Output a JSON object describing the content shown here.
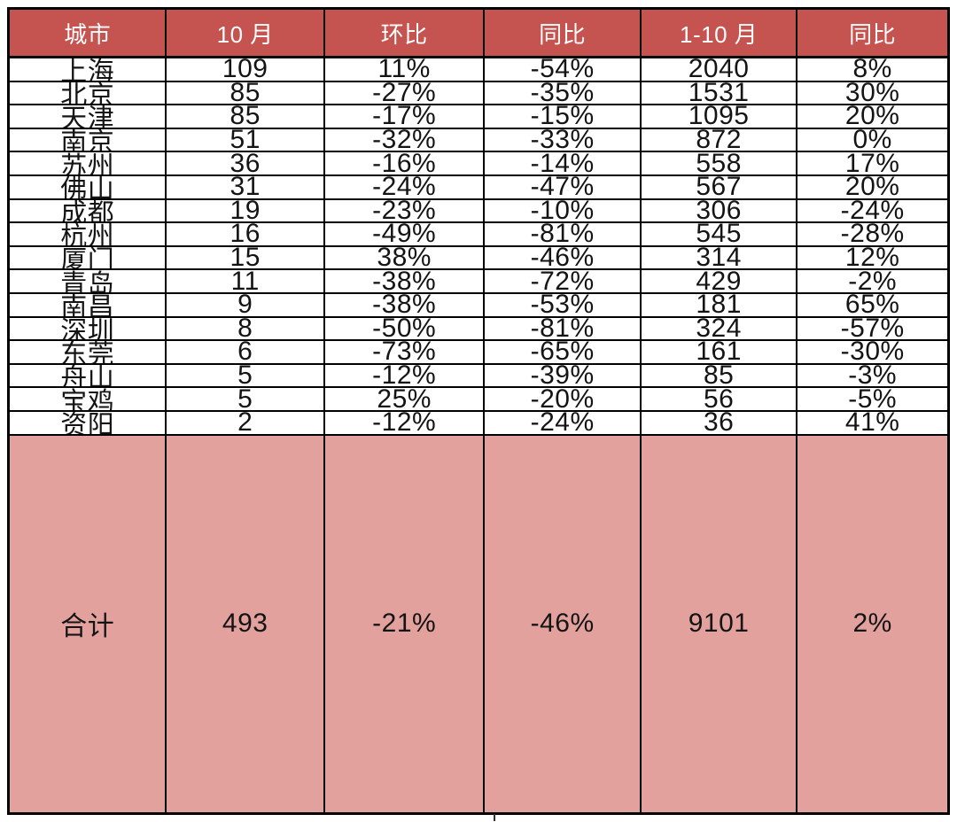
{
  "chart_data": {
    "type": "table",
    "columns": [
      "城市",
      "10 月",
      "环比",
      "同比",
      "1-10 月",
      "同比"
    ],
    "rows": [
      [
        "上海",
        "109",
        "11%",
        "-54%",
        "2040",
        "8%"
      ],
      [
        "北京",
        "85",
        "-27%",
        "-35%",
        "1531",
        "30%"
      ],
      [
        "天津",
        "85",
        "-17%",
        "-15%",
        "1095",
        "20%"
      ],
      [
        "南京",
        "51",
        "-32%",
        "-33%",
        "872",
        "0%"
      ],
      [
        "苏州",
        "36",
        "-16%",
        "-14%",
        "558",
        "17%"
      ],
      [
        "佛山",
        "31",
        "-24%",
        "-47%",
        "567",
        "20%"
      ],
      [
        "成都",
        "19",
        "-23%",
        "-10%",
        "306",
        "-24%"
      ],
      [
        "杭州",
        "16",
        "-49%",
        "-81%",
        "545",
        "-28%"
      ],
      [
        "厦门",
        "15",
        "38%",
        "-46%",
        "314",
        "12%"
      ],
      [
        "青岛",
        "11",
        "-38%",
        "-72%",
        "429",
        "-2%"
      ],
      [
        "南昌",
        "9",
        "-38%",
        "-53%",
        "181",
        "65%"
      ],
      [
        "深圳",
        "8",
        "-50%",
        "-81%",
        "324",
        "-57%"
      ],
      [
        "东莞",
        "6",
        "-73%",
        "-65%",
        "161",
        "-30%"
      ],
      [
        "舟山",
        "5",
        "-12%",
        "-39%",
        "85",
        "-3%"
      ],
      [
        "宝鸡",
        "5",
        "25%",
        "-20%",
        "56",
        "-5%"
      ],
      [
        "资阳",
        "2",
        "-12%",
        "-24%",
        "36",
        "41%"
      ]
    ],
    "footer": [
      "合计",
      "493",
      "-21%",
      "-46%",
      "9101",
      "2%"
    ],
    "layout_hints": {
      "header_position": "top",
      "grid": "on",
      "alignment": "center"
    }
  },
  "colors": {
    "header_bg": "#c5534f",
    "header_text": "#ffffff",
    "footer_bg": "#e3a19e",
    "body_bg": "#ffffff",
    "border": "#000000",
    "text": "#141414"
  }
}
